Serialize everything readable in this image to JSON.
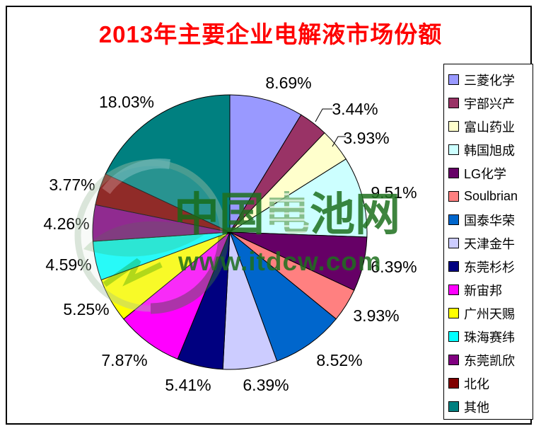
{
  "colors": {
    "title": "#FF0000",
    "watermark_green": "#1E701E",
    "slice_outline": "#000000"
  },
  "watermark": {
    "brand_text": "中国电池网",
    "url_text": "www.itdcw.com"
  },
  "chart_data": {
    "type": "pie",
    "title": "2013年主要企业电解液市场份额",
    "legend_position": "right",
    "start_angle_deg": 0,
    "direction": "clockwise",
    "series": [
      {
        "name": "三菱化学",
        "value": 8.69,
        "label": "8.69%",
        "color": "#9999FF"
      },
      {
        "name": "宇部兴产",
        "value": 3.44,
        "label": "3.44%",
        "color": "#993366"
      },
      {
        "name": "富山药业",
        "value": 3.93,
        "label": "3.93%",
        "color": "#FFFFCC"
      },
      {
        "name": "韩国旭成",
        "value": 9.51,
        "label": "9.51%",
        "color": "#CCFFFF"
      },
      {
        "name": "LG化学",
        "value": 6.39,
        "label": "6.39%",
        "color": "#660066"
      },
      {
        "name": "Soulbrian",
        "value": 3.93,
        "label": "3.93%",
        "color": "#FF8080"
      },
      {
        "name": "国泰华荣",
        "value": 8.52,
        "label": "8.52%",
        "color": "#0066CC"
      },
      {
        "name": "天津金牛",
        "value": 6.39,
        "label": "6.39%",
        "color": "#CCCCFF"
      },
      {
        "name": "东莞杉杉",
        "value": 5.41,
        "label": "5.41%",
        "color": "#000080"
      },
      {
        "name": "新宙邦",
        "value": 7.87,
        "label": "7.87%",
        "color": "#FF00FF"
      },
      {
        "name": "广州天赐",
        "value": 5.25,
        "label": "5.25%",
        "color": "#FFFF00"
      },
      {
        "name": "珠海赛纬",
        "value": 4.59,
        "label": "4.59%",
        "color": "#00FFFF"
      },
      {
        "name": "东莞凯欣",
        "value": 4.26,
        "label": "4.26%",
        "color": "#800080"
      },
      {
        "name": "北化",
        "value": 3.77,
        "label": "3.77%",
        "color": "#800000"
      },
      {
        "name": "其他",
        "value": 18.03,
        "label": "18.03%",
        "color": "#008080"
      }
    ]
  }
}
